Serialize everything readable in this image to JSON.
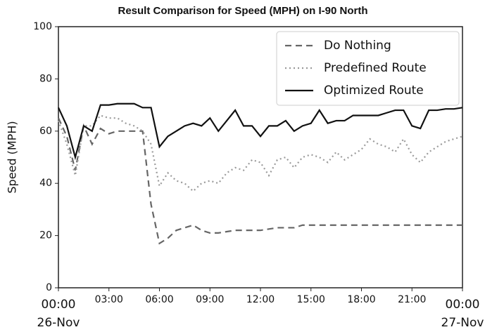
{
  "chart_data": {
    "type": "line",
    "title": "Result Comparison for Speed (MPH) on I-90 North",
    "ylabel": "Speed (MPH)",
    "x": [
      0,
      0.5,
      1,
      1.5,
      2,
      2.5,
      3,
      3.5,
      4,
      4.5,
      5,
      5.5,
      6,
      6.5,
      7,
      7.5,
      8,
      8.5,
      9,
      9.5,
      10,
      10.5,
      11,
      11.5,
      12,
      12.5,
      13,
      13.5,
      14,
      14.5,
      15,
      15.5,
      16,
      16.5,
      17,
      17.5,
      18,
      18.5,
      19,
      19.5,
      20,
      20.5,
      21,
      21.5,
      22,
      22.5,
      23,
      23.5,
      24
    ],
    "series": [
      {
        "name": "Do Nothing",
        "color": "#666666",
        "dash": "9,6",
        "values": [
          65,
          58,
          45,
          62,
          55,
          61,
          59,
          60,
          60,
          60,
          60,
          32,
          17,
          19,
          22,
          23,
          24,
          22,
          21,
          21,
          21.5,
          22,
          22,
          22,
          22,
          22.5,
          23,
          23,
          23,
          24,
          24,
          24,
          24,
          24,
          24,
          24,
          24,
          24,
          24,
          24,
          24,
          24,
          24,
          24,
          24,
          24,
          24,
          24,
          24
        ]
      },
      {
        "name": "Predefined Route",
        "color": "#9a9a9a",
        "dash": "2,4",
        "values": [
          64,
          55,
          43,
          62,
          62,
          66,
          65,
          65,
          63,
          62,
          60,
          55,
          39,
          44,
          41,
          40,
          37,
          40,
          41,
          40,
          44,
          46,
          45,
          49,
          48,
          43,
          49,
          50,
          46,
          50,
          51,
          50,
          48,
          52,
          49,
          51,
          53,
          57,
          55,
          54,
          52,
          57,
          51,
          48,
          52,
          54,
          56,
          57,
          58
        ]
      },
      {
        "name": "Optimized Route",
        "color": "#111111",
        "dash": "none",
        "values": [
          69,
          62,
          50,
          62,
          60,
          70,
          70,
          70.5,
          70.5,
          70.5,
          69,
          69,
          54,
          58,
          60,
          62,
          63,
          62,
          65,
          60,
          64,
          68,
          62,
          62,
          58,
          62,
          62,
          64,
          60,
          62,
          63,
          68,
          63,
          64,
          64,
          66,
          66,
          66,
          66,
          67,
          68,
          68,
          62,
          61,
          68,
          68,
          68.5,
          68.5,
          69
        ]
      }
    ],
    "xlim": [
      0,
      24
    ],
    "xticks": [
      {
        "value": 0,
        "label": [
          "00:00",
          "26-Nov"
        ]
      },
      {
        "value": 3,
        "label": "03:00"
      },
      {
        "value": 6,
        "label": "06:00"
      },
      {
        "value": 9,
        "label": "09:00"
      },
      {
        "value": 12,
        "label": "12:00"
      },
      {
        "value": 15,
        "label": "15:00"
      },
      {
        "value": 18,
        "label": "18:00"
      },
      {
        "value": 21,
        "label": "21:00"
      },
      {
        "value": 24,
        "label": [
          "00:00",
          "27-Nov"
        ]
      }
    ],
    "ylim": [
      0,
      100
    ],
    "yticks": [
      0,
      20,
      40,
      60,
      80,
      100
    ],
    "legend": "upper right"
  }
}
